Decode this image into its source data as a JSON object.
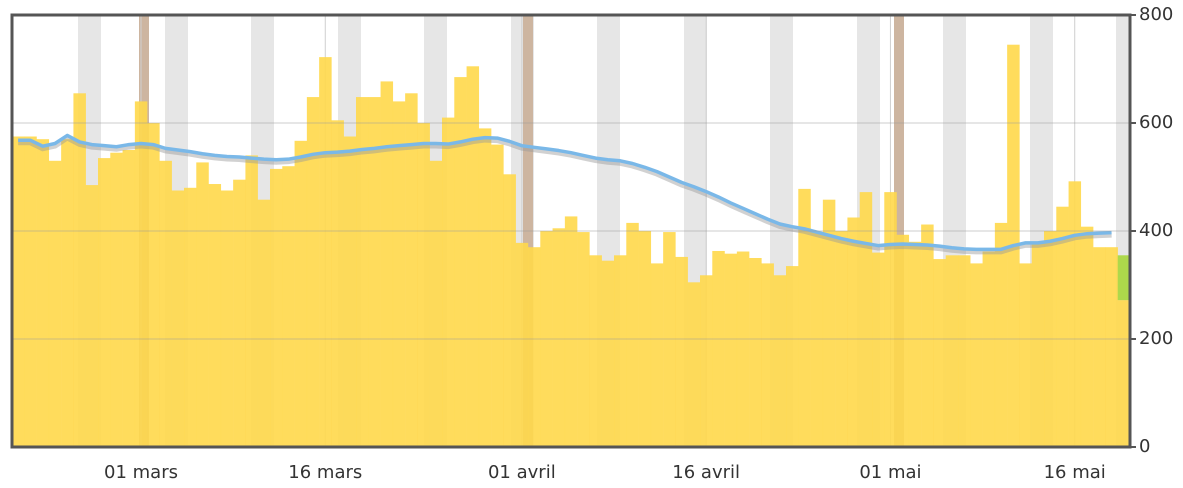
{
  "chart_data": {
    "type": "bar",
    "categories": [
      null,
      null,
      null,
      null,
      null,
      null,
      null,
      null,
      null,
      null,
      "01 mars",
      null,
      null,
      null,
      null,
      null,
      null,
      null,
      null,
      null,
      null,
      null,
      null,
      null,
      null,
      "16 mars",
      null,
      null,
      null,
      null,
      null,
      null,
      null,
      null,
      null,
      null,
      null,
      null,
      null,
      null,
      null,
      "01 avril",
      null,
      null,
      null,
      null,
      null,
      null,
      null,
      null,
      null,
      null,
      null,
      null,
      null,
      null,
      "16 avril",
      null,
      null,
      null,
      null,
      null,
      null,
      null,
      null,
      null,
      null,
      null,
      null,
      null,
      null,
      "01 mai",
      null,
      null,
      null,
      null,
      null,
      null,
      null,
      null,
      null,
      null,
      null,
      null,
      null,
      null,
      "16 mai",
      null,
      null,
      null,
      null
    ],
    "series": [
      {
        "type": "bar",
        "color": "#ffd84a",
        "values": [
          575,
          575,
          570,
          530,
          570,
          655,
          485,
          535,
          545,
          550,
          640,
          600,
          530,
          475,
          480,
          527,
          487,
          475,
          495,
          540,
          458,
          515,
          520,
          567,
          648,
          722,
          605,
          575,
          648,
          648,
          677,
          640,
          655,
          600,
          530,
          610,
          685,
          705,
          590,
          560,
          505,
          378,
          370,
          400,
          405,
          427,
          398,
          355,
          345,
          355,
          415,
          400,
          340,
          398,
          352,
          305,
          318,
          363,
          358,
          362,
          350,
          340,
          318,
          335,
          478,
          398,
          458,
          400,
          425,
          472,
          360,
          472,
          393,
          380,
          412,
          348,
          355,
          355,
          340,
          362,
          415,
          745,
          340,
          380,
          400,
          445,
          492,
          408,
          370,
          370,
          272
        ]
      },
      {
        "type": "bar",
        "color": "#a6d63a",
        "values": [
          null,
          null,
          null,
          null,
          null,
          null,
          null,
          null,
          null,
          null,
          null,
          null,
          null,
          null,
          null,
          null,
          null,
          null,
          null,
          null,
          null,
          null,
          null,
          null,
          null,
          null,
          null,
          null,
          null,
          null,
          null,
          null,
          null,
          null,
          null,
          null,
          null,
          null,
          null,
          null,
          null,
          null,
          null,
          null,
          null,
          null,
          null,
          null,
          null,
          null,
          null,
          null,
          null,
          null,
          null,
          null,
          null,
          null,
          null,
          null,
          null,
          null,
          null,
          null,
          null,
          null,
          null,
          null,
          null,
          null,
          null,
          null,
          null,
          null,
          null,
          null,
          null,
          null,
          null,
          null,
          null,
          null,
          null,
          null,
          null,
          null,
          null,
          null,
          null,
          null,
          83
        ]
      },
      {
        "type": "line",
        "color": "#7ab8e8",
        "values": [
          568,
          568,
          557,
          562,
          577,
          565,
          560,
          558,
          556,
          560,
          562,
          560,
          553,
          550,
          547,
          543,
          540,
          538,
          537,
          535,
          533,
          532,
          533,
          537,
          542,
          545,
          546,
          548,
          551,
          553,
          556,
          558,
          560,
          562,
          562,
          561,
          565,
          570,
          573,
          572,
          566,
          558,
          555,
          552,
          549,
          545,
          540,
          535,
          532,
          530,
          525,
          518,
          510,
          500,
          490,
          482,
          473,
          463,
          452,
          442,
          432,
          422,
          413,
          408,
          404,
          398,
          392,
          386,
          381,
          377,
          373,
          375,
          376,
          375,
          374,
          372,
          369,
          367,
          366,
          366,
          366,
          373,
          378,
          378,
          381,
          386,
          392,
          395,
          396,
          397,
          null
        ]
      }
    ],
    "ylim": [
      0,
      800
    ],
    "yticks": [
      0,
      200,
      400,
      600,
      800
    ],
    "grid": true
  }
}
